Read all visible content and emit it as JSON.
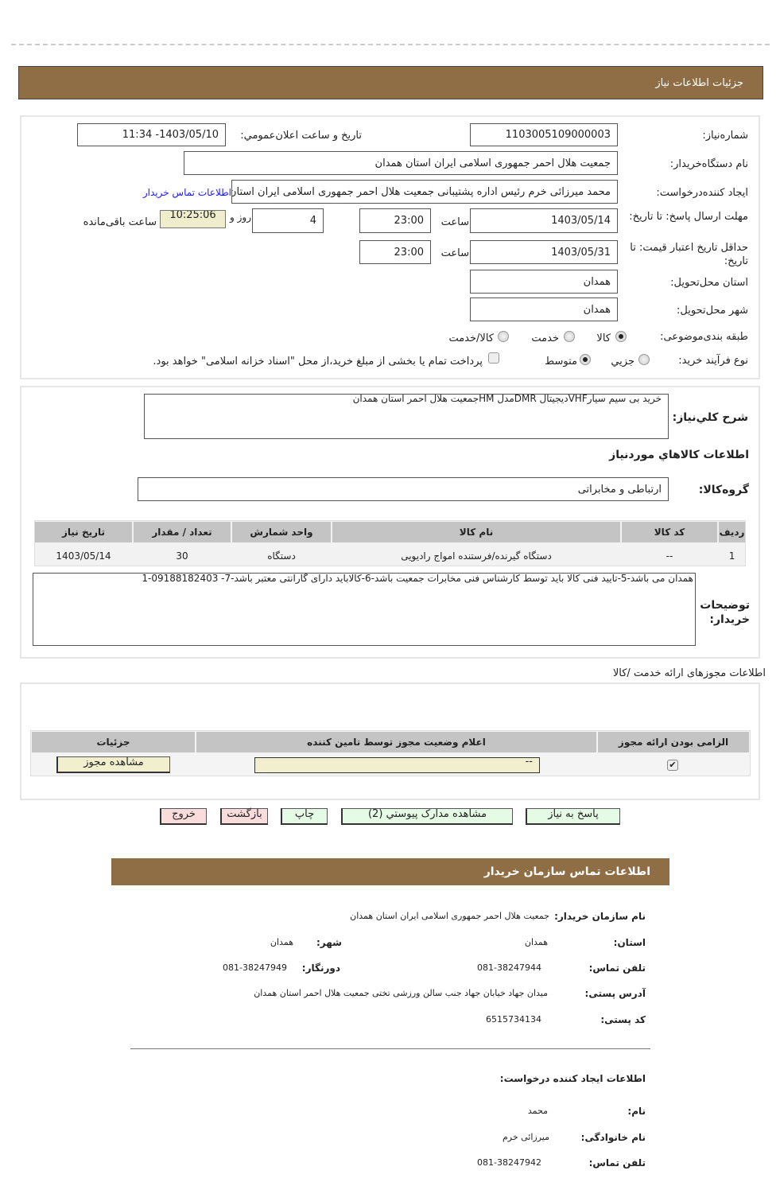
{
  "header": {
    "title": "جزئیات اطلاعات نیاز"
  },
  "form": {
    "need_number_label": "شماره‌نیاز:",
    "need_number": "1103005109000003",
    "announce_label": "تاریخ و ساعت اعلان‌عمومي:",
    "announce_value": "1403/05/10- 11:34",
    "buyer_org_label": "نام دستگاه‌خریدار:",
    "buyer_org": "جمعیت هلال احمر جمهوری اسلامی ایران استان همدان",
    "creator_label": "ایجاد کننده‌درخواست:",
    "creator": "محمد میرزائی خرم رئیس اداره پشتیبانی جمعیت هلال احمر جمهوری اسلامی ایران استان همدان",
    "contact_link": "اطلاعات تماس خریدار",
    "deadline_label": "مهلت ارسال پاسخ: تا تاریخ:",
    "deadline_date": "1403/05/14",
    "hour_label": "ساعت",
    "deadline_time": "23:00",
    "days_value": "4",
    "days_label": "روز و",
    "remaining_time": "10:25:06",
    "remaining_label": "ساعت باقی‌مانده",
    "validity_label": "حداقل تاریخ اعتبار قیمت: تا تاریخ:",
    "validity_date": "1403/05/31",
    "validity_time": "23:00",
    "province_label": "استان محل‌تحویل:",
    "province": "همدان",
    "city_label": "شهر محل‌تحویل:",
    "city": "همدان",
    "category_label": "طبقه بندی‌موضوعی:",
    "category_options": [
      "کالا",
      "خدمت",
      "کالا/خدمت"
    ],
    "category_selected": "کالا",
    "process_label": "نوع فرآیند خرید:",
    "process_options": [
      "جزيي",
      "متوسط"
    ],
    "process_selected": "متوسط",
    "treasury_note": "پرداخت تمام یا بخشی از مبلغ خرید،از محل \"اسناد خزانه اسلامی\" خواهد بود.",
    "treasury_checked": false
  },
  "goods": {
    "summary_label": "شرح کلي‌نیاز:",
    "summary": "خرید بی سیم سیارVHFدیجیتال DMRمدل  HMجمعیت هلال احمر استان همدان",
    "section_title": "اطلاعات کالاهاي موردنیاز",
    "group_label": "گروه‌کالا:",
    "group": "ارتباطی و مخابراتی",
    "columns": [
      "ردیف",
      "کد کالا",
      "نام کالا",
      "واحد شمارش",
      "تعداد / مقدار",
      "تاریخ نیاز"
    ],
    "rows": [
      [
        "1",
        "--",
        "دستگاه گیرنده/فرستنده امواج رادیویی",
        "دستگاه",
        "30",
        "1403/05/14"
      ]
    ],
    "notes_label": "توضیحات خریدار:",
    "notes": "همدان می باشد-5-تایید فنی کالا باید توسط کارشناس فنی مخابرات جمعیت باشد-6-کالاباید دارای گارانتی معتبر باشد-7- 09188182403-1"
  },
  "permits": {
    "title": "اطلاعات مجوزهای ارائه خدمت /کالا",
    "columns": [
      "الزامی بودن  ارائه مجوز",
      "اعلام وضعیت مجوز توسط تامین کننده",
      "جزئیات"
    ],
    "required": true,
    "status": "--",
    "view_button": "مشاهده مجوز"
  },
  "actions": {
    "reply": "پاسخ به نیاز",
    "attachments": "مشاهده مدارک پیوستي (2)",
    "print": "چاپ",
    "back": "بازگشت",
    "exit": "خروج"
  },
  "contact": {
    "title": "اطلاعات تماس سازمان خریدار",
    "org_label": "نام سازمان  خریدار:",
    "org": "جمعیت هلال احمر جمهوری اسلامی ایران استان همدان",
    "province_label": "استان:",
    "province": "همدان",
    "city_label": "شهر:",
    "city": "همدان",
    "phone_label": "تلفن تماس:",
    "phone": "081-38247944",
    "fax_label": "دورنگار:",
    "fax": "081-38247949",
    "address_label": "آدرس پستی:",
    "address": "میدان جهاد خیابان جهاد جنب سالن ورزشی تختی جمعیت  هلال احمر استان همدان",
    "postal_label": "کد پستی:",
    "postal": "6515734134",
    "creator_title": "اطلاعات ایجاد کننده درخواست:",
    "name_label": "نام:",
    "name": "محمد",
    "family_label": "نام  خانوادگی:",
    "family": "میرزائی خرم",
    "creator_phone_label": "تلفن تماس:",
    "creator_phone": "081-38247942"
  },
  "colors": {
    "header_bar": "#8f6e45",
    "remaining_bg": "#eeeecc",
    "button_green": "#e6fbe6",
    "button_pink": "#fbdcdc",
    "link": "#1a1aff"
  }
}
